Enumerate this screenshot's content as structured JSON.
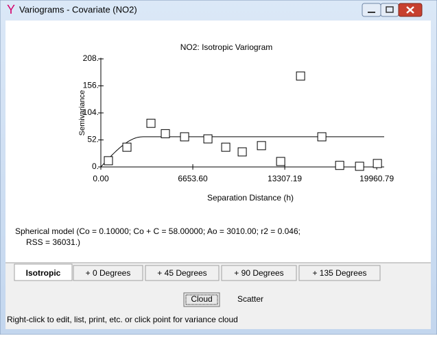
{
  "window": {
    "title": "Variograms - Covariate (NO2)"
  },
  "chart_data": {
    "type": "scatter",
    "title": "NO2: Isotropic Variogram",
    "x_label": "Separation Distance (h)",
    "y_label": "Semivariance",
    "x": [
      546,
      1887,
      3625,
      4667,
      6058,
      7746,
      9037,
      10229,
      11620,
      13011,
      14450,
      15989,
      17280,
      18720,
      20010
    ],
    "values": [
      12,
      38,
      84,
      64,
      58,
      54,
      38,
      29,
      41,
      10.5,
      175,
      58,
      3,
      1.3,
      6.6
    ],
    "xlim": [
      0,
      20500
    ],
    "ylim": [
      0,
      210
    ],
    "xticks": [
      {
        "value": 0,
        "label": "0.00"
      },
      {
        "value": 6653.6,
        "label": "6653.60"
      },
      {
        "value": 13307.19,
        "label": "13307.19"
      },
      {
        "value": 19960.79,
        "label": "19960.79"
      }
    ],
    "yticks": [
      {
        "value": 0,
        "label": "0."
      },
      {
        "value": 52,
        "label": "52."
      },
      {
        "value": 104,
        "label": "104."
      },
      {
        "value": 156,
        "label": "156."
      },
      {
        "value": 208,
        "label": "208."
      }
    ],
    "model": {
      "nugget": 0.1,
      "sill": 58,
      "range": 3010
    }
  },
  "model_text": [
    "Spherical model (Co = 0.10000; Co + C = 58.00000; Ao = 3010.00; r2 = 0.046;",
    "RSS = 36031.)"
  ],
  "tabs": [
    "Isotropic",
    "+ 0 Degrees",
    "+ 45 Degrees",
    "+ 90 Degrees",
    "+ 135 Degrees"
  ],
  "buttons": [
    "Cloud",
    "Scatter"
  ],
  "status": "Right-click to edit, list, print, etc. or click point for variance cloud"
}
